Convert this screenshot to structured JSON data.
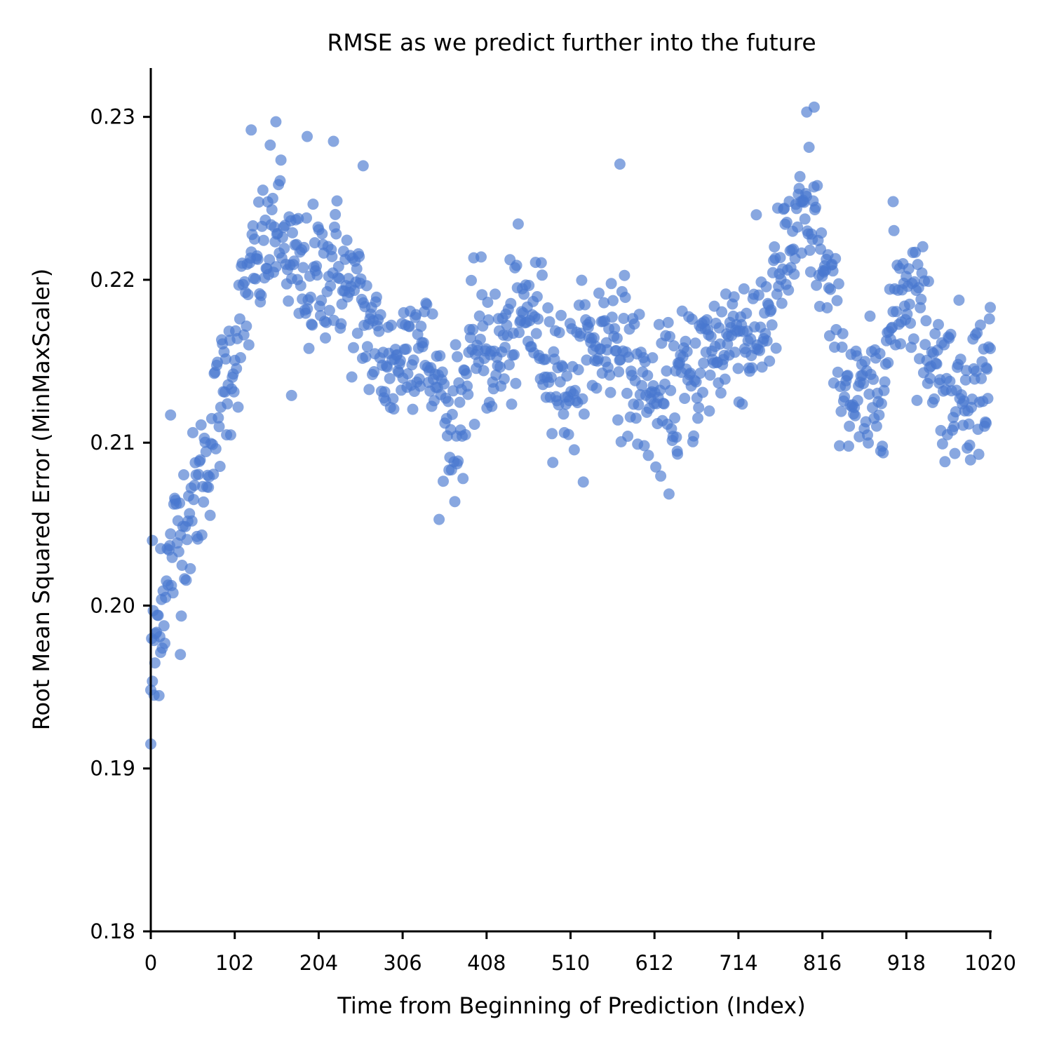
{
  "chart_data": {
    "type": "scatter",
    "title": "RMSE as we predict further into the future",
    "xlabel": "Time from Beginning of Prediction (Index)",
    "ylabel": "Root Mean Squared Error (MinMaxScaler)",
    "xlim": [
      0,
      1020
    ],
    "ylim": [
      0.18,
      0.233
    ],
    "xticks": [
      0,
      102,
      204,
      306,
      408,
      510,
      612,
      714,
      816,
      918,
      1020
    ],
    "xtick_labels": [
      "0",
      "102",
      "204",
      "306",
      "408",
      "510",
      "612",
      "714",
      "816",
      "918",
      "1020"
    ],
    "yticks": [
      0.18,
      0.19,
      0.2,
      0.21,
      0.22,
      0.23
    ],
    "ytick_labels": [
      "0.18",
      "0.19",
      "0.20",
      "0.21",
      "0.22",
      "0.23"
    ],
    "grid": false,
    "color": "#4878d0",
    "point_count": 1020,
    "series": [
      {
        "knots_x": [
          0,
          8,
          16,
          24,
          32,
          40,
          50,
          60,
          70,
          80,
          90,
          100,
          110,
          120,
          130,
          140,
          150,
          160,
          170,
          180,
          190,
          200,
          210,
          220,
          230,
          240,
          250,
          260,
          270,
          280,
          290,
          300,
          310,
          320,
          330,
          340,
          350,
          360,
          370,
          380,
          390,
          400,
          410,
          420,
          430,
          440,
          450,
          460,
          470,
          480,
          490,
          500,
          510,
          520,
          530,
          540,
          550,
          560,
          570,
          580,
          590,
          600,
          610,
          620,
          630,
          640,
          650,
          660,
          670,
          680,
          690,
          700,
          710,
          720,
          730,
          740,
          750,
          760,
          770,
          780,
          790,
          800,
          810,
          820,
          830,
          840,
          850,
          860,
          870,
          880,
          890,
          900,
          910,
          920,
          930,
          940,
          950,
          960,
          970,
          980,
          990,
          1000,
          1010,
          1020
        ],
        "knots_y": [
          0.1955,
          0.1985,
          0.2005,
          0.2025,
          0.2045,
          0.2055,
          0.206,
          0.2075,
          0.2095,
          0.2115,
          0.2135,
          0.2155,
          0.2175,
          0.2195,
          0.221,
          0.222,
          0.2235,
          0.2225,
          0.221,
          0.22,
          0.2195,
          0.22,
          0.2205,
          0.221,
          0.2205,
          0.2195,
          0.2185,
          0.2175,
          0.2165,
          0.2155,
          0.2145,
          0.215,
          0.216,
          0.217,
          0.216,
          0.2145,
          0.213,
          0.2115,
          0.211,
          0.213,
          0.215,
          0.2165,
          0.216,
          0.215,
          0.216,
          0.217,
          0.2175,
          0.218,
          0.217,
          0.216,
          0.215,
          0.214,
          0.2135,
          0.2145,
          0.2155,
          0.216,
          0.2165,
          0.217,
          0.216,
          0.215,
          0.214,
          0.213,
          0.2125,
          0.212,
          0.2125,
          0.2135,
          0.214,
          0.2145,
          0.215,
          0.2155,
          0.216,
          0.2165,
          0.217,
          0.217,
          0.2165,
          0.217,
          0.218,
          0.2195,
          0.221,
          0.222,
          0.223,
          0.224,
          0.2225,
          0.2195,
          0.217,
          0.215,
          0.213,
          0.212,
          0.212,
          0.213,
          0.215,
          0.217,
          0.2195,
          0.22,
          0.219,
          0.2175,
          0.2155,
          0.214,
          0.2135,
          0.2135,
          0.2135,
          0.2135,
          0.214,
          0.2145
        ],
        "noise_sd": 0.0022,
        "points": [
          {
            "x": 0,
            "y": 0.1915
          },
          {
            "x": 2,
            "y": 0.204
          },
          {
            "x": 4,
            "y": 0.1945
          },
          {
            "x": 12,
            "y": 0.2035
          },
          {
            "x": 24,
            "y": 0.2117
          },
          {
            "x": 36,
            "y": 0.197
          },
          {
            "x": 122,
            "y": 0.2292
          },
          {
            "x": 152,
            "y": 0.2297
          },
          {
            "x": 190,
            "y": 0.2288
          },
          {
            "x": 222,
            "y": 0.2285
          },
          {
            "x": 258,
            "y": 0.227
          },
          {
            "x": 171,
            "y": 0.2129
          },
          {
            "x": 570,
            "y": 0.2271
          },
          {
            "x": 797,
            "y": 0.2303
          },
          {
            "x": 806,
            "y": 0.2306
          },
          {
            "x": 902,
            "y": 0.2248
          },
          {
            "x": 1020,
            "y": 0.2183
          },
          {
            "x": 1015,
            "y": 0.2112
          },
          {
            "x": 372,
            "y": 0.2087
          },
          {
            "x": 640,
            "y": 0.2093
          }
        ]
      }
    ]
  }
}
